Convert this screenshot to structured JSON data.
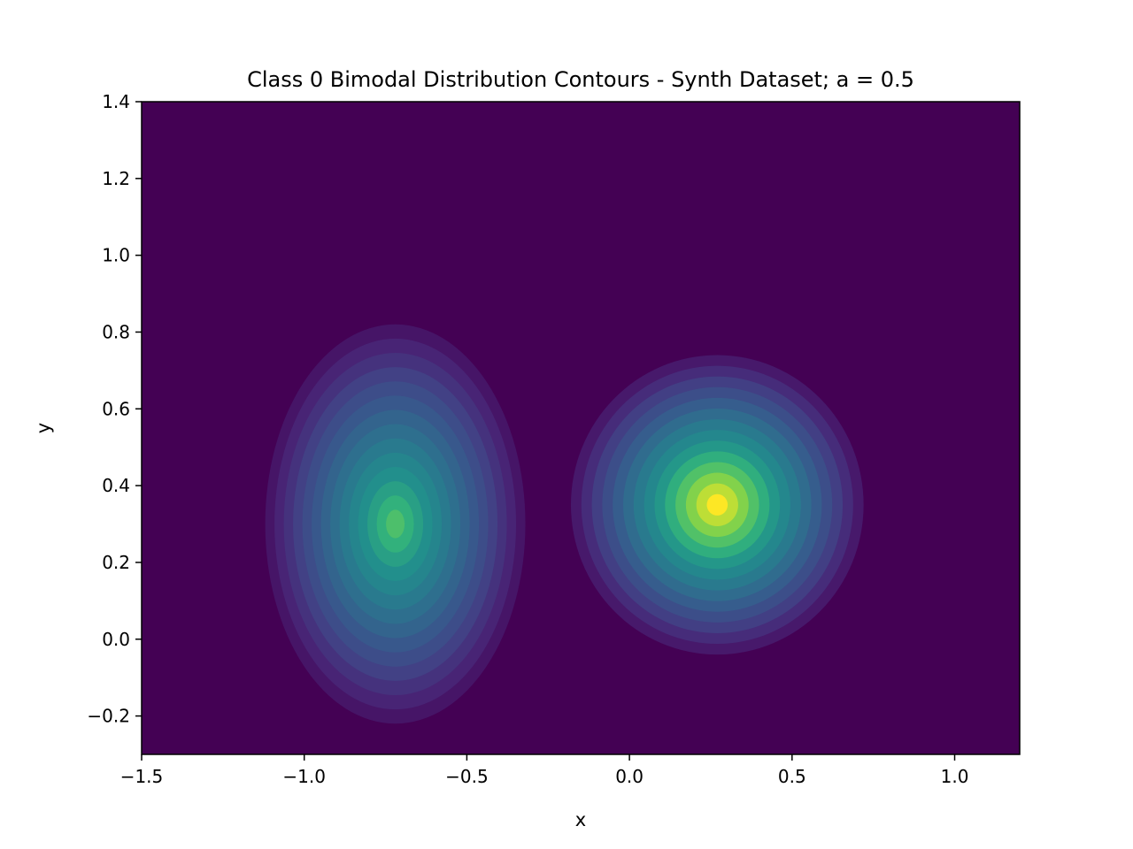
{
  "chart_data": {
    "type": "contour",
    "title": "Class 0 Bimodal Distribution Contours - Synth Dataset; a = 0.5",
    "xlabel": "x",
    "ylabel": "y",
    "xlim": [
      -1.5,
      1.2
    ],
    "ylim": [
      -0.3,
      1.4
    ],
    "x_ticks": [
      -1.5,
      -1.0,
      -0.5,
      0.0,
      0.5,
      1.0
    ],
    "x_tick_labels": [
      "−1.5",
      "−1.0",
      "−0.5",
      "0.0",
      "0.5",
      "1.0"
    ],
    "y_ticks": [
      -0.2,
      0.0,
      0.2,
      0.4,
      0.6,
      0.8,
      1.0,
      1.2,
      1.4
    ],
    "y_tick_labels": [
      "−0.2",
      "0.0",
      "0.2",
      "0.4",
      "0.6",
      "0.8",
      "1.0",
      "1.2",
      "1.4"
    ],
    "colormap": "viridis",
    "background_color": "#440154",
    "grid": false,
    "modes": [
      {
        "center_x": -0.72,
        "center_y": 0.3,
        "extent_x": 0.4,
        "extent_y": 0.52,
        "peak_level": 0.78
      },
      {
        "center_x": 0.27,
        "center_y": 0.35,
        "extent_x": 0.45,
        "extent_y": 0.39,
        "peak_level": 1.0
      }
    ],
    "levels": 14
  }
}
